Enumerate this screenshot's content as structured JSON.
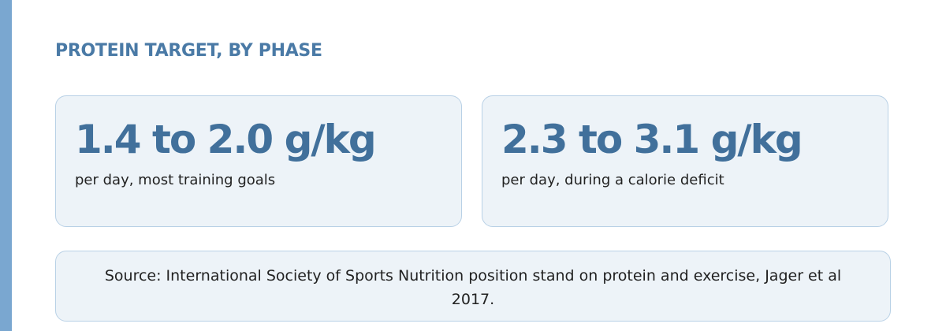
{
  "heading": "PROTEIN TARGET, BY PHASE",
  "cards": [
    {
      "value": "1.4 to 2.0 g/kg",
      "caption": "per day, most training goals"
    },
    {
      "value": "2.3 to 3.1 g/kg",
      "caption": "per day, during a calorie deficit"
    }
  ],
  "source": "Source: International Society of Sports Nutrition position stand on protein and exercise, Jager et al 2017."
}
